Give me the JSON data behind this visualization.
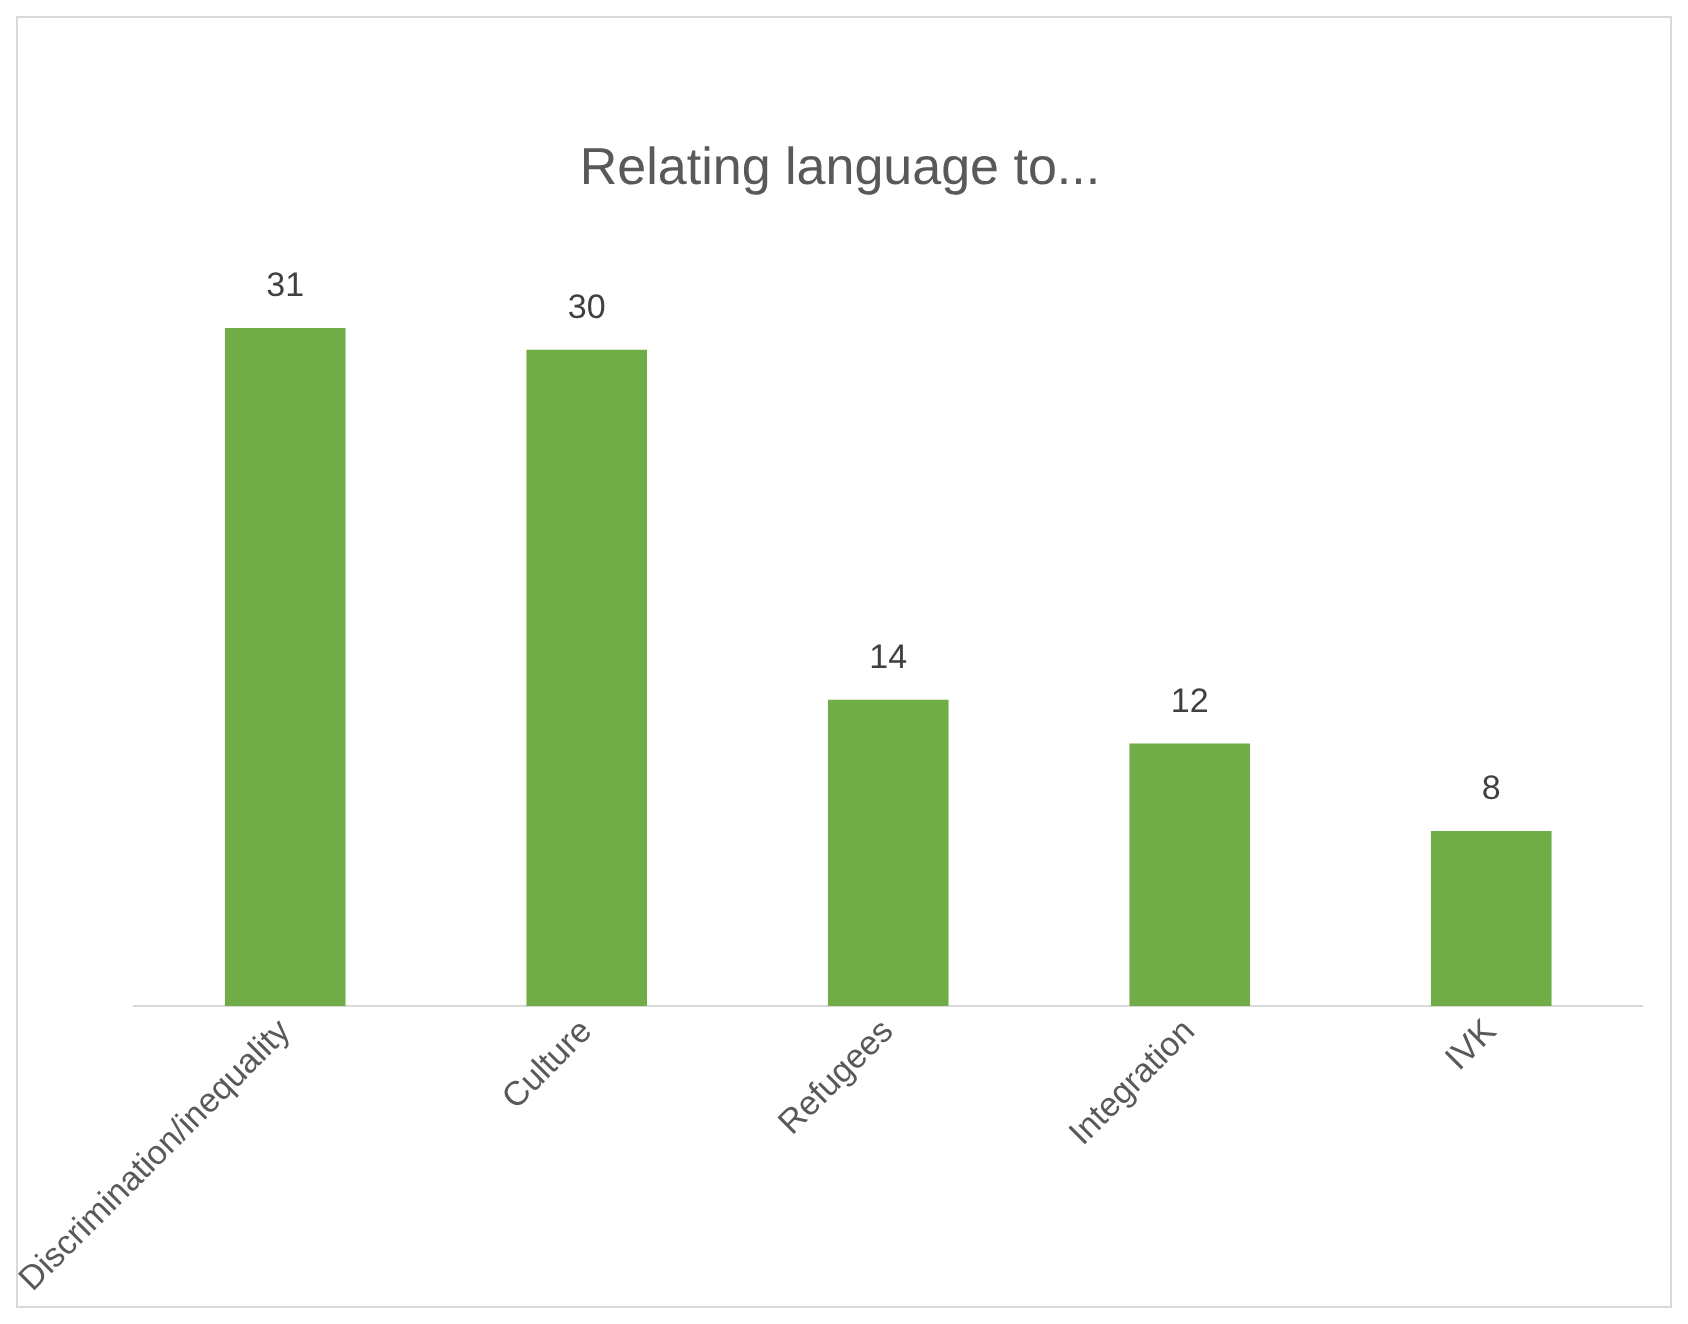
{
  "chart_data": {
    "type": "bar",
    "title": "Relating language to...",
    "categories": [
      "Discrimination/inequality",
      "Culture",
      "Refugees",
      "Integration",
      "IVK"
    ],
    "values": [
      31,
      30,
      14,
      12,
      8
    ],
    "color": "#70ad47",
    "data_labels": true,
    "grid": false,
    "legend": false
  }
}
